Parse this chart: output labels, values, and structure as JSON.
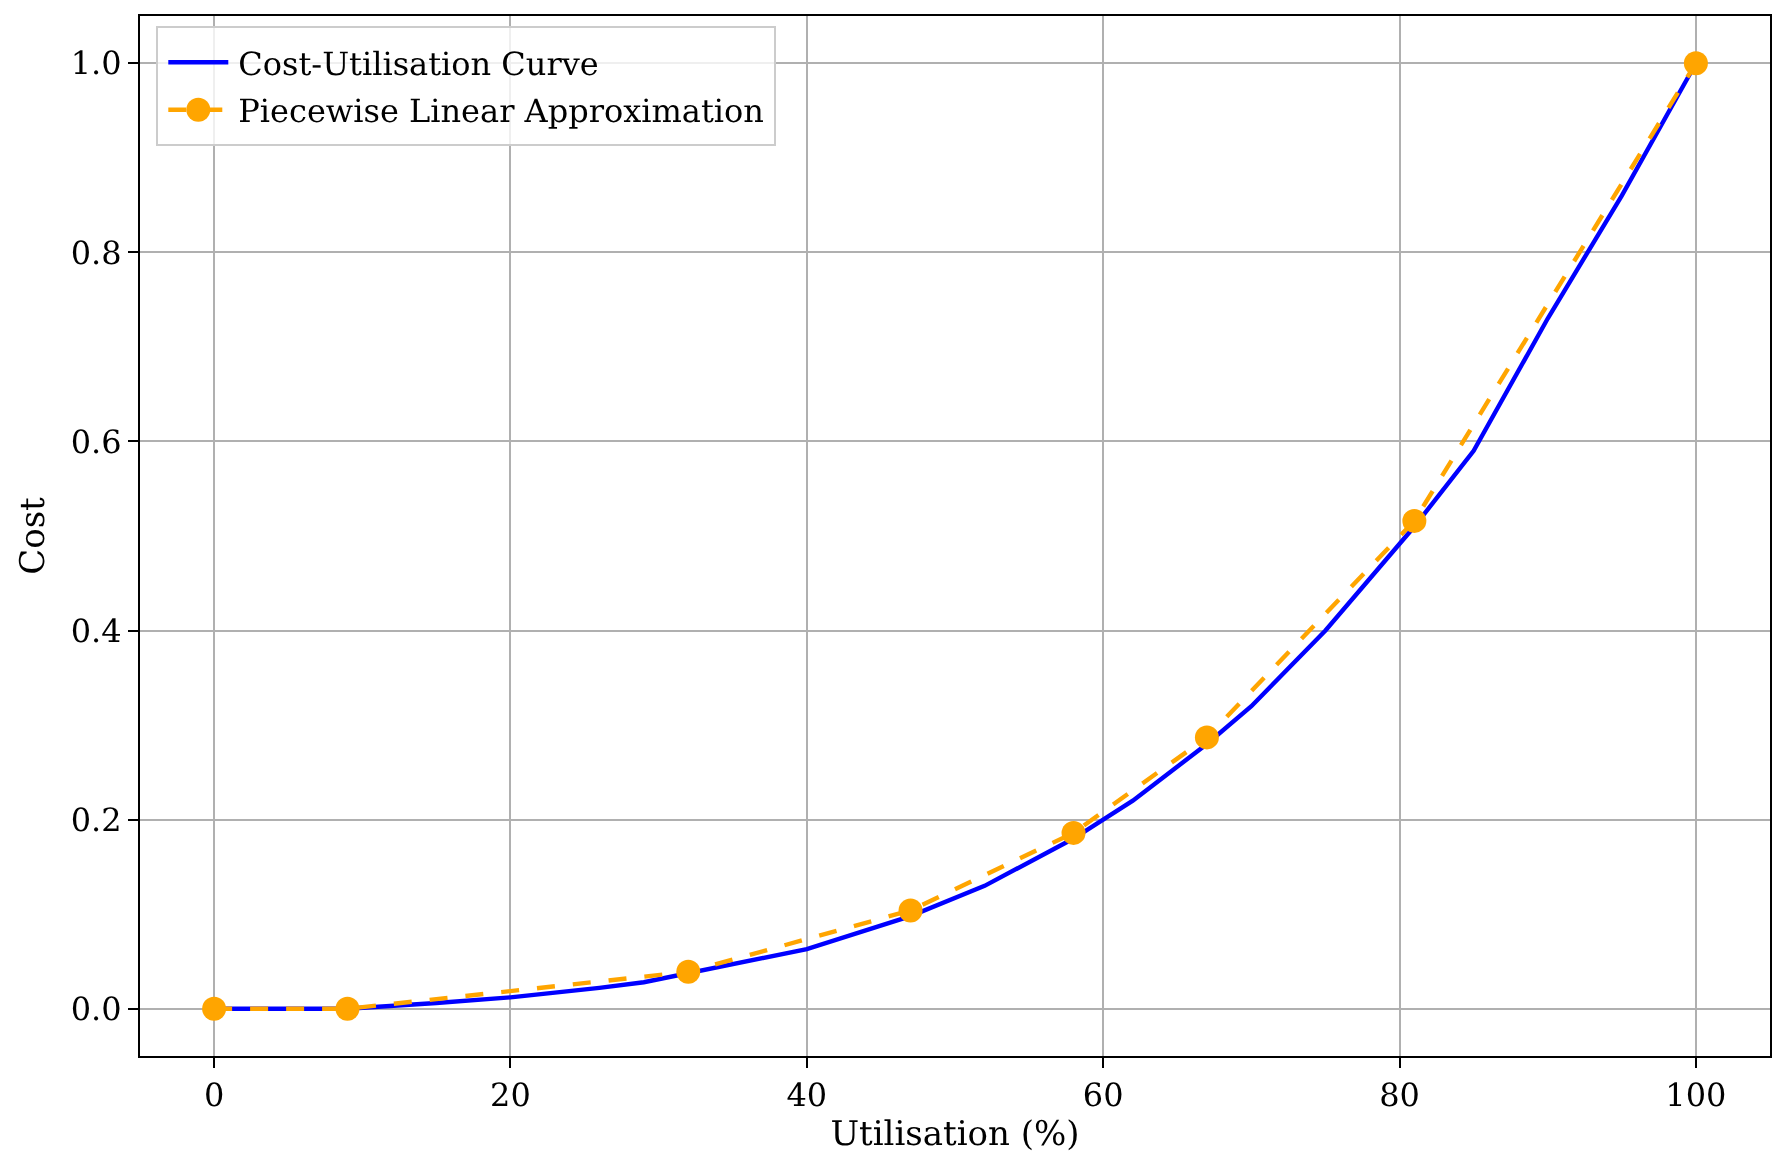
{
  "chart_data": {
    "type": "line",
    "xlabel": "Utilisation (%)",
    "ylabel": "Cost",
    "xlim": [
      -5,
      105
    ],
    "xticks": [
      0,
      20,
      40,
      60,
      80,
      100
    ],
    "ylim": [
      -0.05,
      1.05
    ],
    "yticks": [
      {
        "value": 0,
        "label": "0.0"
      },
      {
        "value": 0.2,
        "label": "0.2"
      },
      {
        "value": 0.4,
        "label": "0.4"
      },
      {
        "value": 0.6,
        "label": "0.6"
      },
      {
        "value": 0.8,
        "label": "0.8"
      },
      {
        "value": 1,
        "label": "1.0"
      }
    ],
    "grid": true,
    "legend": "top left",
    "series": [
      {
        "name": "Cost-Utilisation Curve",
        "color": "#0000ff",
        "marker": "none",
        "line_style": "solid",
        "x": [
          0,
          5,
          9,
          15,
          20,
          26,
          29,
          40,
          47,
          52,
          58,
          62,
          67,
          70,
          75,
          81,
          85,
          90,
          95,
          100
        ],
        "values": [
          0,
          0,
          0,
          0.006,
          0.012,
          0.022,
          0.028,
          0.063,
          0.098,
          0.13,
          0.18,
          0.22,
          0.28,
          0.32,
          0.4,
          0.51,
          0.59,
          0.73,
          0.86,
          1.0
        ]
      },
      {
        "name": "Piecewise Linear Approximation",
        "color": "#ffa500",
        "marker": "circle",
        "line_style": "dashed",
        "x": [
          0,
          9,
          32,
          47,
          58,
          67,
          81,
          100
        ],
        "values": [
          0,
          0,
          0.039,
          0.104,
          0.186,
          0.287,
          0.516,
          1.0
        ]
      }
    ]
  }
}
